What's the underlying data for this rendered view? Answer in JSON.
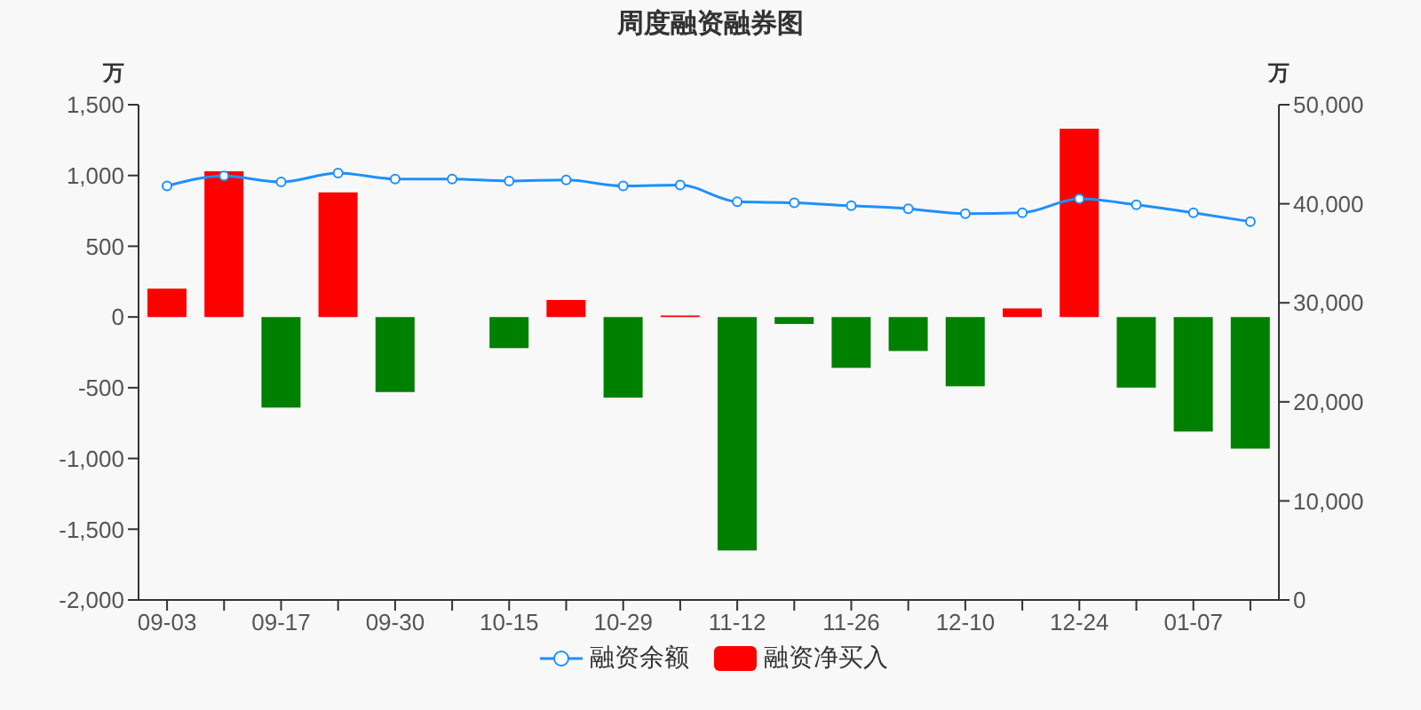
{
  "chart_data": {
    "type": "bar",
    "title": "周度融资融券图",
    "ylabel": "万",
    "y2label": "万",
    "categories": [
      "09-03",
      null,
      "09-17",
      null,
      "09-30",
      null,
      "10-15",
      null,
      "10-29",
      null,
      "11-12",
      null,
      "11-26",
      null,
      "12-10",
      null,
      "12-24",
      null,
      "01-07",
      null
    ],
    "series": [
      {
        "name": "融资余额",
        "type": "line",
        "axis": "y2",
        "color": "#1e90ff",
        "marker": "circle",
        "values": [
          41800,
          42800,
          42200,
          43100,
          42500,
          42500,
          42300,
          42400,
          41800,
          41900,
          40200,
          40100,
          39800,
          39500,
          39000,
          39100,
          40500,
          39900,
          39100,
          38200
        ]
      },
      {
        "name": "融资净买入",
        "color": "#ff0000",
        "colors": [
          "#ff0000",
          "#ff0000",
          "#008000",
          "#ff0000",
          "#008000",
          "#ff0000",
          "#008000",
          "#ff0000",
          "#008000",
          "#ff0000",
          "#008000",
          "#008000",
          "#008000",
          "#008000",
          "#008000",
          "#ff0000",
          "#ff0000",
          "#008000",
          "#008000",
          "#008000"
        ],
        "values": [
          200,
          1030,
          -640,
          880,
          -530,
          0,
          -220,
          120,
          -570,
          10,
          -1650,
          -50,
          -360,
          -240,
          -490,
          60,
          1330,
          -500,
          -810,
          -930
        ]
      }
    ],
    "ylim": [
      -2000,
      1500
    ],
    "yticks": [
      {
        "value": -2000,
        "label": "-2,000"
      },
      {
        "value": -1500,
        "label": "-1,500"
      },
      {
        "value": -1000,
        "label": "-1,000"
      },
      -500,
      0,
      500,
      {
        "value": 1000,
        "label": "1,000"
      },
      {
        "value": 1500,
        "label": "1,500"
      }
    ],
    "y2lim": [
      0,
      50000
    ],
    "y2ticks": [
      0,
      {
        "value": 10000,
        "label": "10,000"
      },
      {
        "value": 20000,
        "label": "20,000"
      },
      {
        "value": 30000,
        "label": "30,000"
      },
      {
        "value": 40000,
        "label": "40,000"
      },
      {
        "value": 50000,
        "label": "50,000"
      }
    ],
    "legend": "bottom"
  }
}
